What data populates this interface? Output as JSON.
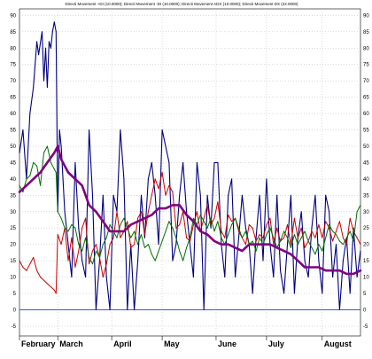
{
  "chart_data": {
    "type": "line",
    "title": "Directi Movement +DI (10.0000); Directi Movement -DI (10.0000); Directi Movement ADX (10.0000); Directi Movement DX (22.0000)",
    "xlabel": "",
    "ylabel": "",
    "ylim": [
      -8,
      92
    ],
    "yticks": [
      -5,
      0,
      5,
      10,
      15,
      20,
      25,
      30,
      35,
      40,
      45,
      50,
      55,
      60,
      65,
      70,
      75,
      80,
      85,
      90
    ],
    "months": [
      {
        "label": "February",
        "day": 0
      },
      {
        "label": "March",
        "day": 22
      },
      {
        "label": "April",
        "day": 53
      },
      {
        "label": "May",
        "day": 82
      },
      {
        "label": "June",
        "day": 113
      },
      {
        "label": "July",
        "day": 142
      },
      {
        "label": "August",
        "day": 174
      }
    ],
    "x_range": [
      0,
      196
    ],
    "grid": true,
    "legend": "none",
    "zero_line": {
      "value": 0,
      "color": "#3355ff"
    },
    "series": [
      {
        "color": "#000080",
        "width": 1.1,
        "x": [
          0,
          2,
          4,
          6,
          8,
          10,
          11,
          13,
          14,
          15,
          16,
          17,
          18,
          19,
          20,
          21,
          22,
          23,
          24,
          26,
          28,
          30,
          32,
          34,
          36,
          38,
          40,
          42,
          44,
          46,
          48,
          50,
          52,
          54,
          56,
          58,
          60,
          62,
          64,
          66,
          68,
          70,
          72,
          74,
          76,
          78,
          80,
          82,
          84,
          86,
          88,
          90,
          92,
          94,
          96,
          98,
          100,
          102,
          104,
          106,
          108,
          110,
          112,
          114,
          116,
          118,
          120,
          122,
          124,
          126,
          128,
          130,
          132,
          134,
          136,
          138,
          140,
          142,
          144,
          146,
          148,
          150,
          152,
          154,
          156,
          158,
          160,
          162,
          164,
          166,
          168,
          170,
          172,
          174,
          176,
          178,
          180,
          182,
          184,
          186,
          188,
          190,
          192,
          194,
          196
        ],
        "values": [
          48,
          55,
          40,
          60,
          68,
          82,
          78,
          85,
          70,
          80,
          68,
          82,
          80,
          85,
          88,
          85,
          30,
          55,
          50,
          30,
          20,
          10,
          45,
          25,
          15,
          10,
          55,
          35,
          0,
          15,
          35,
          10,
          0,
          35,
          30,
          55,
          40,
          0,
          20,
          0,
          15,
          35,
          22,
          40,
          45,
          35,
          20,
          55,
          50,
          45,
          15,
          20,
          35,
          45,
          30,
          20,
          10,
          45,
          35,
          0,
          35,
          25,
          45,
          45,
          20,
          10,
          35,
          40,
          10,
          22,
          35,
          25,
          20,
          5,
          22,
          35,
          15,
          40,
          20,
          10,
          35,
          12,
          5,
          20,
          35,
          5,
          22,
          30,
          15,
          10,
          25,
          35,
          15,
          5,
          35,
          30,
          10,
          20,
          0,
          15,
          22,
          5,
          25,
          10,
          18
        ]
      },
      {
        "color": "#cc0000",
        "width": 1,
        "x": [
          0,
          2,
          4,
          6,
          8,
          10,
          12,
          14,
          16,
          18,
          20,
          21,
          22,
          24,
          26,
          28,
          30,
          32,
          34,
          36,
          38,
          40,
          42,
          44,
          46,
          48,
          50,
          52,
          54,
          56,
          58,
          60,
          62,
          64,
          66,
          68,
          70,
          72,
          74,
          76,
          78,
          80,
          82,
          84,
          86,
          88,
          90,
          92,
          94,
          96,
          98,
          100,
          102,
          104,
          106,
          108,
          110,
          112,
          114,
          116,
          118,
          120,
          122,
          124,
          126,
          128,
          130,
          132,
          134,
          136,
          138,
          140,
          142,
          144,
          146,
          148,
          150,
          152,
          154,
          156,
          158,
          160,
          162,
          164,
          166,
          168,
          170,
          172,
          174,
          176,
          178,
          180,
          182,
          184,
          186,
          188,
          190,
          192,
          194,
          196
        ],
        "values": [
          15,
          13,
          12,
          14,
          16,
          12,
          10,
          9,
          8,
          7,
          6,
          5,
          23,
          20,
          25,
          15,
          22,
          13,
          18,
          25,
          28,
          14,
          18,
          20,
          16,
          10,
          14,
          20,
          22,
          30,
          22,
          24,
          27,
          19,
          20,
          28,
          30,
          23,
          30,
          35,
          40,
          37,
          42,
          35,
          38,
          36,
          25,
          26,
          30,
          22,
          21,
          26,
          30,
          24,
          28,
          32,
          26,
          28,
          33,
          24,
          22,
          29,
          27,
          28,
          24,
          22,
          20,
          26,
          25,
          21,
          23,
          22,
          26,
          28,
          20,
          25,
          21,
          22,
          26,
          20,
          28,
          22,
          25,
          19,
          21,
          24,
          22,
          26,
          22,
          27,
          25,
          21,
          24,
          27,
          22,
          20,
          28,
          24,
          22,
          20
        ]
      },
      {
        "color": "#007000",
        "width": 1,
        "x": [
          0,
          2,
          4,
          6,
          8,
          10,
          12,
          14,
          16,
          18,
          20,
          21,
          22,
          24,
          26,
          28,
          30,
          32,
          34,
          36,
          38,
          40,
          42,
          44,
          46,
          48,
          50,
          52,
          54,
          56,
          58,
          60,
          62,
          64,
          66,
          68,
          70,
          72,
          74,
          76,
          78,
          80,
          82,
          84,
          86,
          88,
          90,
          92,
          94,
          96,
          98,
          100,
          102,
          104,
          106,
          108,
          110,
          112,
          114,
          116,
          118,
          120,
          122,
          124,
          126,
          128,
          130,
          132,
          134,
          136,
          138,
          140,
          142,
          144,
          146,
          148,
          150,
          152,
          154,
          156,
          158,
          160,
          162,
          164,
          166,
          168,
          170,
          172,
          174,
          176,
          178,
          180,
          182,
          184,
          186,
          188,
          190,
          192,
          194,
          196
        ],
        "values": [
          38,
          36,
          40,
          41,
          45,
          44,
          38,
          48,
          50,
          45,
          43,
          42,
          30,
          28,
          25,
          24,
          26,
          25,
          20,
          18,
          22,
          16,
          14,
          18,
          16,
          20,
          22,
          26,
          24,
          22,
          26,
          28,
          25,
          22,
          24,
          20,
          23,
          19,
          20,
          17,
          15,
          18,
          21,
          24,
          27,
          25,
          22,
          18,
          15,
          19,
          22,
          28,
          26,
          29,
          27,
          25,
          28,
          24,
          27,
          22,
          20,
          23,
          26,
          28,
          25,
          22,
          24,
          20,
          21,
          18,
          22,
          20,
          23,
          25,
          22,
          19,
          21,
          24,
          22,
          19,
          23,
          20,
          22,
          24,
          21,
          19,
          17,
          20,
          18,
          22,
          26,
          24,
          23,
          21,
          20,
          22,
          24,
          21,
          30,
          32
        ]
      },
      {
        "color": "#800080",
        "width": 2.6,
        "x": [
          0,
          4,
          8,
          12,
          16,
          20,
          22,
          24,
          28,
          32,
          36,
          40,
          44,
          48,
          52,
          56,
          60,
          64,
          68,
          72,
          76,
          80,
          84,
          88,
          92,
          96,
          100,
          104,
          108,
          112,
          116,
          120,
          124,
          128,
          132,
          136,
          140,
          144,
          148,
          152,
          156,
          160,
          164,
          168,
          172,
          176,
          180,
          184,
          188,
          192,
          196
        ],
        "values": [
          36,
          38,
          40,
          42,
          45,
          48,
          50,
          46,
          42,
          40,
          38,
          32,
          30,
          27,
          24,
          24,
          24,
          26,
          27,
          28,
          29,
          31,
          31,
          32,
          32,
          29,
          27,
          24,
          23,
          21,
          20,
          20,
          19,
          18,
          20,
          20,
          20,
          20,
          19,
          18,
          17,
          15,
          13,
          13,
          13,
          12,
          12,
          12,
          11,
          11,
          12
        ]
      }
    ]
  }
}
